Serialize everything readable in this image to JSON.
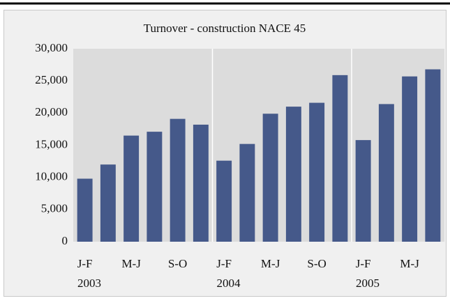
{
  "chart_data": {
    "type": "bar",
    "title": "Turnover - construction NACE 45",
    "categories": [
      "J-F",
      null,
      "M-J",
      null,
      "S-O",
      null,
      "J-F",
      null,
      "M-J",
      null,
      "S-O",
      null,
      "J-F",
      null,
      "M-J",
      null
    ],
    "year_labels": [
      "2003",
      "2004",
      "2005"
    ],
    "values": [
      9800,
      12000,
      16500,
      17100,
      19100,
      18200,
      12600,
      15200,
      19900,
      21000,
      21600,
      25900,
      15800,
      21400,
      25700,
      26800
    ],
    "color": "#45598a",
    "ylim": [
      0,
      30000
    ],
    "yticks": [
      0,
      {
        "value": 5000,
        "label": "5,000"
      },
      {
        "value": 10000,
        "label": "10,000"
      },
      {
        "value": 15000,
        "label": "15,000"
      },
      {
        "value": 20000,
        "label": "20,000"
      },
      {
        "value": 25000,
        "label": "25,000"
      },
      {
        "value": 30000,
        "label": "30,000"
      }
    ],
    "grid": false
  }
}
